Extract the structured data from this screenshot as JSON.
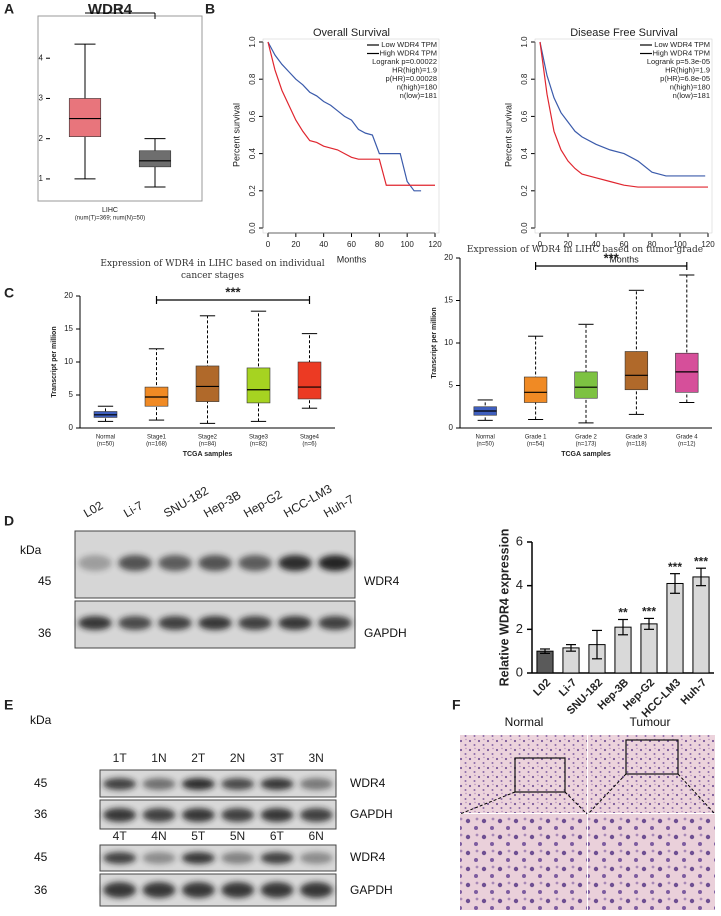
{
  "panel_labels": [
    "A",
    "B",
    "C",
    "D",
    "E",
    "F"
  ],
  "chart_data": [
    {
      "type": "box",
      "title": "WDR4",
      "xlabel": [
        "LIHC",
        "(num(T)=369; num(N)=50)"
      ],
      "boxes": [
        {
          "color": "#e8757c",
          "min": 1.0,
          "q1": 2.05,
          "median": 2.5,
          "q3": 3.0,
          "max": 4.35
        },
        {
          "color": "#6e6e6e",
          "min": 0.8,
          "q1": 1.3,
          "median": 1.45,
          "q3": 1.7,
          "max": 2.0
        }
      ],
      "ylim": [
        0.6,
        4.9
      ],
      "yticks": [
        1,
        2,
        3,
        4
      ],
      "annotation": "*",
      "annotation_color": "#e8312f"
    },
    {
      "type": "line",
      "title": "Overall Survival",
      "xlabel": "Months",
      "ylabel": "Percent survival",
      "xlim": [
        0,
        120
      ],
      "xticks": [
        0,
        20,
        40,
        60,
        80,
        100,
        120
      ],
      "ylim": [
        0,
        1
      ],
      "yticks": [
        {
          "value": 0,
          "label": "0.0"
        },
        0.2,
        0.4,
        0.6,
        0.8,
        {
          "value": 1,
          "label": "1.0"
        }
      ],
      "legend": "top-right",
      "series": [
        {
          "name": "Low WDR4 TPM",
          "color": "#3b5bab",
          "x": [
            0,
            5,
            10,
            15,
            20,
            25,
            30,
            35,
            40,
            45,
            50,
            55,
            60,
            65,
            70,
            75,
            80,
            85,
            90,
            95,
            100,
            105,
            110
          ],
          "values": [
            1.0,
            0.93,
            0.88,
            0.84,
            0.8,
            0.77,
            0.73,
            0.71,
            0.68,
            0.66,
            0.63,
            0.6,
            0.58,
            0.53,
            0.51,
            0.5,
            0.4,
            0.4,
            0.4,
            0.4,
            0.25,
            0.2,
            0.2
          ]
        },
        {
          "name": "High WDR4 TPM",
          "color": "#e0262f",
          "x": [
            0,
            5,
            10,
            15,
            20,
            25,
            30,
            35,
            40,
            45,
            50,
            55,
            60,
            65,
            70,
            75,
            80,
            85,
            90,
            100,
            110,
            120
          ],
          "values": [
            1.0,
            0.85,
            0.74,
            0.66,
            0.58,
            0.52,
            0.47,
            0.46,
            0.44,
            0.43,
            0.42,
            0.4,
            0.38,
            0.37,
            0.37,
            0.37,
            0.37,
            0.23,
            0.23,
            0.23,
            0.23,
            0.23
          ]
        }
      ],
      "stats": [
        "Logrank p=0.00022",
        "HR(high)=1.9",
        "p(HR)=0.00028",
        "n(high)=180",
        "n(low)=181"
      ]
    },
    {
      "type": "line",
      "title": "Disease Free Survival",
      "xlabel": "Months",
      "ylabel": "Percent survival",
      "xlim": [
        0,
        120
      ],
      "xticks": [
        0,
        20,
        40,
        60,
        80,
        100,
        120
      ],
      "ylim": [
        0,
        1
      ],
      "yticks": [
        {
          "value": 0,
          "label": "0.0"
        },
        0.2,
        0.4,
        0.6,
        0.8,
        {
          "value": 1,
          "label": "1.0"
        }
      ],
      "legend": "top-right",
      "series": [
        {
          "name": "Low WDR4 TPM",
          "color": "#3b5bab",
          "x": [
            0,
            5,
            10,
            15,
            20,
            25,
            30,
            40,
            50,
            60,
            70,
            80,
            90,
            100,
            110,
            118
          ],
          "values": [
            1.0,
            0.82,
            0.7,
            0.62,
            0.57,
            0.52,
            0.49,
            0.45,
            0.42,
            0.4,
            0.36,
            0.3,
            0.28,
            0.28,
            0.28,
            0.28
          ]
        },
        {
          "name": "High WDR4 TPM",
          "color": "#e0262f",
          "x": [
            0,
            5,
            10,
            15,
            20,
            25,
            30,
            40,
            50,
            60,
            70,
            80,
            90,
            100,
            110,
            120
          ],
          "values": [
            1.0,
            0.72,
            0.52,
            0.42,
            0.36,
            0.32,
            0.29,
            0.27,
            0.25,
            0.23,
            0.22,
            0.22,
            0.22,
            0.22,
            0.22,
            0.22
          ]
        }
      ],
      "stats": [
        "Logrank p=5.3e-05",
        "HR(high)=1.9",
        "p(HR)=6.8e-05",
        "n(high)=180",
        "n(low)=181"
      ]
    },
    {
      "type": "box",
      "title": "Expression of WDR4 in LIHC based on individual cancer stages",
      "xlabel": "TCGA samples",
      "ylabel": "Transcript per million",
      "categories": [
        "Normal",
        "Stage1",
        "Stage2",
        "Stage3",
        "Stage4"
      ],
      "counts": [
        "(n=50)",
        "(n=168)",
        "(n=84)",
        "(n=82)",
        "(n=6)"
      ],
      "boxes": [
        {
          "color": "#3f5fbf",
          "min": 1.0,
          "q1": 1.6,
          "median": 2.0,
          "q3": 2.5,
          "max": 3.3
        },
        {
          "color": "#f08a24",
          "min": 1.2,
          "q1": 3.3,
          "median": 4.7,
          "q3": 6.2,
          "max": 12.0
        },
        {
          "color": "#b0692a",
          "min": 0.7,
          "q1": 4.0,
          "median": 6.3,
          "q3": 9.4,
          "max": 17.0
        },
        {
          "color": "#a6d321",
          "min": 1.0,
          "q1": 3.8,
          "median": 5.8,
          "q3": 9.1,
          "max": 17.7
        },
        {
          "color": "#ec3a23",
          "min": 3.0,
          "q1": 4.4,
          "median": 6.2,
          "q3": 10.0,
          "max": 14.3
        }
      ],
      "ylim": [
        0,
        20
      ],
      "yticks": [
        0,
        5,
        10,
        15,
        20
      ],
      "annotation": "***"
    },
    {
      "type": "box",
      "title": "Expression of WDR4 in LIHC based on tumor grade",
      "xlabel": "TCGA samples",
      "ylabel": "Transcript per million",
      "categories": [
        "Normal",
        "Grade 1",
        "Grade 2",
        "Grade 3",
        "Grade 4"
      ],
      "counts": [
        "(n=50)",
        "(n=54)",
        "(n=173)",
        "(n=118)",
        "(n=12)"
      ],
      "boxes": [
        {
          "color": "#3f5fbf",
          "min": 0.9,
          "q1": 1.5,
          "median": 2.0,
          "q3": 2.5,
          "max": 3.3
        },
        {
          "color": "#f08a24",
          "min": 1.0,
          "q1": 3.0,
          "median": 4.2,
          "q3": 6.0,
          "max": 10.8
        },
        {
          "color": "#7dc242",
          "min": 0.6,
          "q1": 3.5,
          "median": 4.8,
          "q3": 6.6,
          "max": 12.2
        },
        {
          "color": "#b0692a",
          "min": 1.6,
          "q1": 4.5,
          "median": 6.2,
          "q3": 9.0,
          "max": 16.2
        },
        {
          "color": "#d64f9a",
          "min": 3.0,
          "q1": 4.2,
          "median": 6.6,
          "q3": 8.8,
          "max": 18.0
        }
      ],
      "ylim": [
        0,
        20
      ],
      "yticks": [
        0,
        5,
        10,
        15,
        20
      ],
      "annotation": "***"
    },
    {
      "type": "bar",
      "ylabel": "Relative WDR4 expression",
      "categories": [
        "L02",
        "Li-7",
        "SNU-182",
        "Hep-3B",
        "Hep-G2",
        "HCC-LM3",
        "Huh-7"
      ],
      "values": [
        1.0,
        1.15,
        1.3,
        2.1,
        2.25,
        4.1,
        4.4
      ],
      "errors": [
        0.1,
        0.15,
        0.65,
        0.35,
        0.25,
        0.45,
        0.4
      ],
      "colors": [
        "#5a5a5a",
        "#d9d9d9",
        "#d9d9d9",
        "#d9d9d9",
        "#d9d9d9",
        "#d9d9d9",
        "#d9d9d9"
      ],
      "significance": [
        null,
        null,
        null,
        "**",
        "***",
        "***",
        "***"
      ],
      "ylim": [
        0,
        6
      ],
      "yticks": [
        0,
        2,
        4,
        6
      ]
    }
  ],
  "blot_d": {
    "unit": "kDa",
    "lanes": [
      "L02",
      "Li-7",
      "SNU-182",
      "Hep-3B",
      "Hep-G2",
      "HCC-LM3",
      "Huh-7"
    ],
    "rows": [
      {
        "size": 45,
        "protein": "WDR4"
      },
      {
        "size": 36,
        "protein": "GAPDH"
      }
    ]
  },
  "blot_e": {
    "unit": "kDa",
    "blocks": [
      {
        "lanes": [
          "1T",
          "1N",
          "2T",
          "2N",
          "3T",
          "3N"
        ],
        "rows": [
          {
            "size": 45,
            "protein": "WDR4"
          },
          {
            "size": 36,
            "protein": "GAPDH"
          }
        ]
      },
      {
        "lanes": [
          "4T",
          "4N",
          "5T",
          "5N",
          "6T",
          "6N"
        ],
        "rows": [
          {
            "size": 45,
            "protein": "WDR4"
          },
          {
            "size": 36,
            "protein": "GAPDH"
          }
        ]
      }
    ]
  },
  "ihc": {
    "labels": [
      "Normal",
      "Tumour"
    ]
  }
}
